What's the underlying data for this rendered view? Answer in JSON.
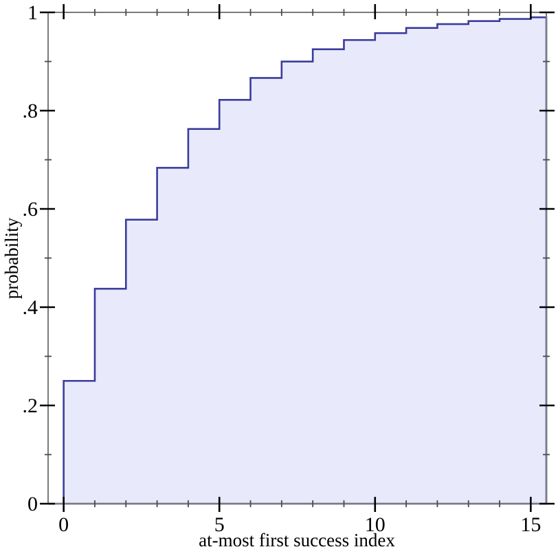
{
  "figure": {
    "background": "#ffffff"
  },
  "chart_data": {
    "type": "area",
    "subtype": "cdf-step-function",
    "title": "",
    "xlabel": "at-most first success index",
    "ylabel": "probability",
    "x": [
      0,
      1,
      2,
      3,
      4,
      5,
      6,
      7,
      8,
      9,
      10,
      11,
      12,
      13,
      14,
      15
    ],
    "cdf": [
      0.25,
      0.4375,
      0.5781,
      0.6836,
      0.7627,
      0.822,
      0.8665,
      0.8999,
      0.9249,
      0.9437,
      0.9578,
      0.9683,
      0.9762,
      0.9822,
      0.9866,
      0.99
    ],
    "xlim": [
      -0.5,
      15.5
    ],
    "ylim": [
      0,
      1
    ],
    "x_major_ticks": [
      0,
      5,
      10,
      15
    ],
    "x_major_tick_labels": [
      "0",
      "5",
      "10",
      "15"
    ],
    "x_minor_ticks": [
      1,
      2,
      3,
      4,
      6,
      7,
      8,
      9,
      11,
      12,
      13,
      14
    ],
    "y_major_ticks": [
      0,
      0.2,
      0.4,
      0.6,
      0.8,
      1
    ],
    "y_major_tick_labels": [
      "0",
      ".2",
      ".4",
      ".6",
      ".8",
      "1"
    ],
    "y_minor_ticks": [
      0.1,
      0.3,
      0.5,
      0.7,
      0.9
    ],
    "grid": false,
    "legend": "none",
    "colors": {
      "line": "#3b3b9c",
      "fill": "#e8eafb",
      "frame": "#7a7a7a",
      "major_tick": "#000000",
      "minor_tick": "#4a4a4a",
      "text": "#000000",
      "background": "#ffffff"
    }
  }
}
